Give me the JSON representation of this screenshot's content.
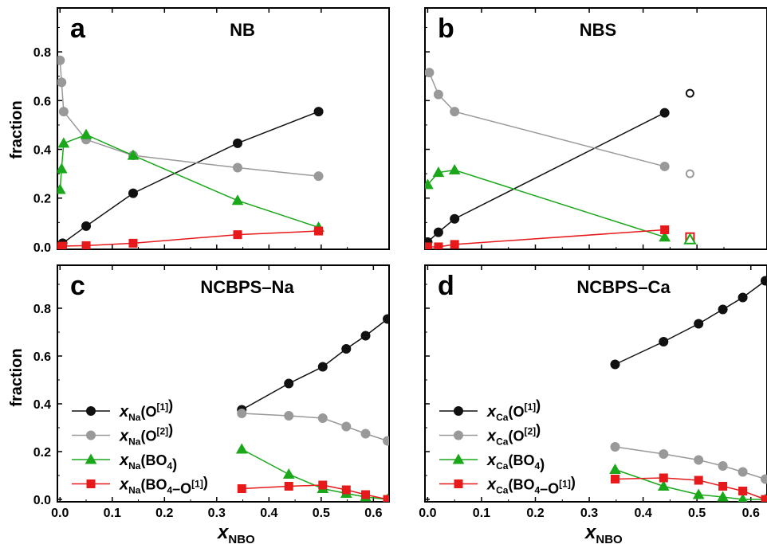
{
  "colors": {
    "O1": "#111111",
    "O2": "#999999",
    "BO4": "#1aa81a",
    "BO4_O1": "#e8191a"
  },
  "xaxis_label": {
    "main": "x",
    "sub": "NBO"
  },
  "ylabel": "fraction",
  "legends": [
    {
      "species": "Na",
      "entries": [
        {
          "marker": "circle",
          "color_key": "O1",
          "var": "x",
          "sub": "Na",
          "open": "(O",
          "sup": "[1]",
          "close": ")"
        },
        {
          "marker": "circle",
          "color_key": "O2",
          "var": "x",
          "sub": "Na",
          "open": "(O",
          "sup": "[2]",
          "close": ")"
        },
        {
          "marker": "triangle",
          "color_key": "BO4",
          "var": "x",
          "sub": "Na",
          "open": "(BO",
          "sub2": "4",
          "close": ")"
        },
        {
          "marker": "square",
          "color_key": "BO4_O1",
          "var": "x",
          "sub": "Na",
          "open": "(BO",
          "sub2": "4",
          "mid": "–O",
          "sup": "[1]",
          "close": ")"
        }
      ]
    },
    {
      "species": "Ca",
      "entries": [
        {
          "marker": "circle",
          "color_key": "O1",
          "var": "x",
          "sub": "Ca",
          "open": "(O",
          "sup": "[1]",
          "close": ")"
        },
        {
          "marker": "circle",
          "color_key": "O2",
          "var": "x",
          "sub": "Ca",
          "open": "(O",
          "sup": "[2]",
          "close": ")"
        },
        {
          "marker": "triangle",
          "color_key": "BO4",
          "var": "x",
          "sub": "Ca",
          "open": "(BO",
          "sub2": "4",
          "close": ")"
        },
        {
          "marker": "square",
          "color_key": "BO4_O1",
          "var": "x",
          "sub": "Ca",
          "open": "(BO",
          "sub2": "4",
          "mid": "–O",
          "sup": "[1]",
          "close": ")"
        }
      ]
    }
  ],
  "chart_data": [
    {
      "type": "line",
      "panel": "a",
      "title": "NB",
      "xlabel": "x_NBO",
      "ylabel": "fraction",
      "xlim": [
        -0.005,
        0.63
      ],
      "ylim": [
        -0.01,
        0.98
      ],
      "xticks": [
        0.0,
        0.1,
        0.2,
        0.3,
        0.4,
        0.5
      ],
      "xtick_labels": [
        "",
        "",
        "",
        "",
        "",
        ""
      ],
      "yticks": [
        0.0,
        0.2,
        0.4,
        0.6,
        0.8
      ],
      "ytick_labels": [
        "0.0",
        "0.2",
        "0.4",
        "0.6",
        "0.8"
      ],
      "series": [
        {
          "color_key": "O1",
          "marker": "circle",
          "x": [
            0.0,
            0.005,
            0.05,
            0.14,
            0.34,
            0.495
          ],
          "y": [
            0.0,
            0.015,
            0.085,
            0.22,
            0.425,
            0.555
          ]
        },
        {
          "color_key": "O2",
          "marker": "circle",
          "x": [
            0.0,
            0.003,
            0.007,
            0.05,
            0.14,
            0.34,
            0.495
          ],
          "y": [
            0.765,
            0.675,
            0.555,
            0.44,
            0.375,
            0.325,
            0.29
          ]
        },
        {
          "color_key": "BO4",
          "marker": "triangle",
          "x": [
            0.0,
            0.003,
            0.007,
            0.05,
            0.14,
            0.34,
            0.495
          ],
          "y": [
            0.235,
            0.32,
            0.425,
            0.46,
            0.375,
            0.19,
            0.08
          ]
        },
        {
          "color_key": "BO4_O1",
          "marker": "square",
          "x": [
            0.0,
            0.005,
            0.05,
            0.14,
            0.34,
            0.495
          ],
          "y": [
            0.0,
            0.003,
            0.005,
            0.015,
            0.05,
            0.065
          ]
        }
      ]
    },
    {
      "type": "line",
      "panel": "b",
      "title": "NBS",
      "xlabel": "x_NBO",
      "ylabel": "fraction",
      "xlim": [
        -0.005,
        0.63
      ],
      "ylim": [
        -0.01,
        0.98
      ],
      "xticks": [
        0.0,
        0.1,
        0.2,
        0.3,
        0.4,
        0.5
      ],
      "xtick_labels": [
        "",
        "",
        "",
        "",
        "",
        ""
      ],
      "yticks": [
        0.0,
        0.2,
        0.4,
        0.6,
        0.8
      ],
      "ytick_labels": [
        "",
        "",
        "",
        "",
        ""
      ],
      "series": [
        {
          "color_key": "O1",
          "marker": "circle",
          "x": [
            0.0,
            0.02,
            0.05,
            0.44
          ],
          "y": [
            0.02,
            0.06,
            0.115,
            0.55
          ]
        },
        {
          "color_key": "O2",
          "marker": "circle",
          "x": [
            0.003,
            0.02,
            0.05,
            0.44
          ],
          "y": [
            0.715,
            0.625,
            0.555,
            0.33
          ]
        },
        {
          "color_key": "BO4",
          "marker": "triangle",
          "x": [
            0.0,
            0.02,
            0.05,
            0.44
          ],
          "y": [
            0.255,
            0.305,
            0.315,
            0.04
          ]
        },
        {
          "color_key": "BO4_O1",
          "marker": "square",
          "x": [
            0.0,
            0.02,
            0.05,
            0.44
          ],
          "y": [
            0.0,
            0.0,
            0.01,
            0.07
          ]
        }
      ],
      "open_points": [
        {
          "color_key": "O1",
          "marker": "circle",
          "x": 0.487,
          "y": 0.63
        },
        {
          "color_key": "O2",
          "marker": "circle",
          "x": 0.487,
          "y": 0.3
        },
        {
          "color_key": "BO4_O1",
          "marker": "square",
          "x": 0.487,
          "y": 0.04
        },
        {
          "color_key": "BO4",
          "marker": "triangle",
          "x": 0.487,
          "y": 0.03
        }
      ]
    },
    {
      "type": "line",
      "panel": "c",
      "title": "NCBPS–Na",
      "xlabel": "x_NBO",
      "ylabel": "fraction",
      "xlim": [
        -0.005,
        0.63
      ],
      "ylim": [
        -0.01,
        0.98
      ],
      "xticks": [
        0.0,
        0.1,
        0.2,
        0.3,
        0.4,
        0.5,
        0.6
      ],
      "xtick_labels": [
        "0.0",
        "0.1",
        "0.2",
        "0.3",
        "0.4",
        "0.5",
        "0.6"
      ],
      "yticks": [
        0.0,
        0.2,
        0.4,
        0.6,
        0.8
      ],
      "ytick_labels": [
        "0.0",
        "0.2",
        "0.4",
        "0.6",
        "0.8"
      ],
      "legend": "lower-left",
      "series": [
        {
          "color_key": "O1",
          "marker": "circle",
          "x": [
            0.348,
            0.438,
            0.503,
            0.548,
            0.585,
            0.627
          ],
          "y": [
            0.375,
            0.485,
            0.555,
            0.63,
            0.685,
            0.755
          ]
        },
        {
          "color_key": "O2",
          "marker": "circle",
          "x": [
            0.348,
            0.438,
            0.503,
            0.548,
            0.585,
            0.627
          ],
          "y": [
            0.36,
            0.35,
            0.34,
            0.305,
            0.275,
            0.245
          ]
        },
        {
          "color_key": "BO4",
          "marker": "triangle",
          "x": [
            0.348,
            0.438,
            0.503,
            0.548,
            0.585,
            0.627
          ],
          "y": [
            0.21,
            0.105,
            0.045,
            0.025,
            0.01,
            0.0
          ]
        },
        {
          "color_key": "BO4_O1",
          "marker": "square",
          "x": [
            0.348,
            0.438,
            0.503,
            0.548,
            0.585,
            0.627
          ],
          "y": [
            0.045,
            0.055,
            0.06,
            0.04,
            0.02,
            0.0
          ]
        }
      ]
    },
    {
      "type": "line",
      "panel": "d",
      "title": "NCBPS–Ca",
      "xlabel": "x_NBO",
      "ylabel": "fraction",
      "xlim": [
        -0.005,
        0.63
      ],
      "ylim": [
        -0.01,
        0.98
      ],
      "xticks": [
        0.0,
        0.1,
        0.2,
        0.3,
        0.4,
        0.5,
        0.6
      ],
      "xtick_labels": [
        "0.0",
        "0.1",
        "0.2",
        "0.3",
        "0.4",
        "0.5",
        "0.6"
      ],
      "yticks": [
        0.0,
        0.2,
        0.4,
        0.6,
        0.8
      ],
      "ytick_labels": [
        "",
        "",
        "",
        "",
        ""
      ],
      "legend": "lower-left",
      "series": [
        {
          "color_key": "O1",
          "marker": "circle",
          "x": [
            0.348,
            0.438,
            0.503,
            0.548,
            0.585,
            0.627
          ],
          "y": [
            0.565,
            0.66,
            0.735,
            0.795,
            0.845,
            0.915
          ]
        },
        {
          "color_key": "O2",
          "marker": "circle",
          "x": [
            0.348,
            0.438,
            0.503,
            0.548,
            0.585,
            0.627
          ],
          "y": [
            0.22,
            0.19,
            0.165,
            0.14,
            0.115,
            0.085
          ]
        },
        {
          "color_key": "BO4",
          "marker": "triangle",
          "x": [
            0.348,
            0.438,
            0.503,
            0.548,
            0.585,
            0.627
          ],
          "y": [
            0.125,
            0.055,
            0.02,
            0.01,
            0.0,
            0.0
          ]
        },
        {
          "color_key": "BO4_O1",
          "marker": "square",
          "x": [
            0.348,
            0.438,
            0.503,
            0.548,
            0.585,
            0.627
          ],
          "y": [
            0.085,
            0.09,
            0.08,
            0.055,
            0.035,
            0.0
          ]
        }
      ]
    }
  ]
}
